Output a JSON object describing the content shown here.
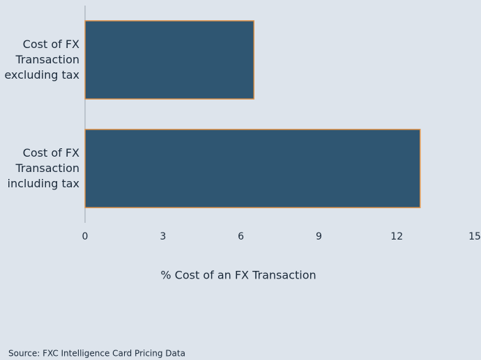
{
  "chart_data": {
    "type": "bar",
    "orientation": "horizontal",
    "categories": [
      "Cost of FX Transaction excluding tax",
      "Cost of FX Transaction including tax"
    ],
    "values": [
      6.5,
      12.9
    ],
    "color": "#2f5672",
    "edge_color": "#e0944a",
    "xlabel": "% Cost of an FX Transaction",
    "xlim": [
      0,
      15
    ],
    "xticks": [
      0,
      3,
      6,
      9,
      12,
      15
    ],
    "grid": false,
    "source": "Source: FXC Intelligence Card Pricing Data"
  }
}
